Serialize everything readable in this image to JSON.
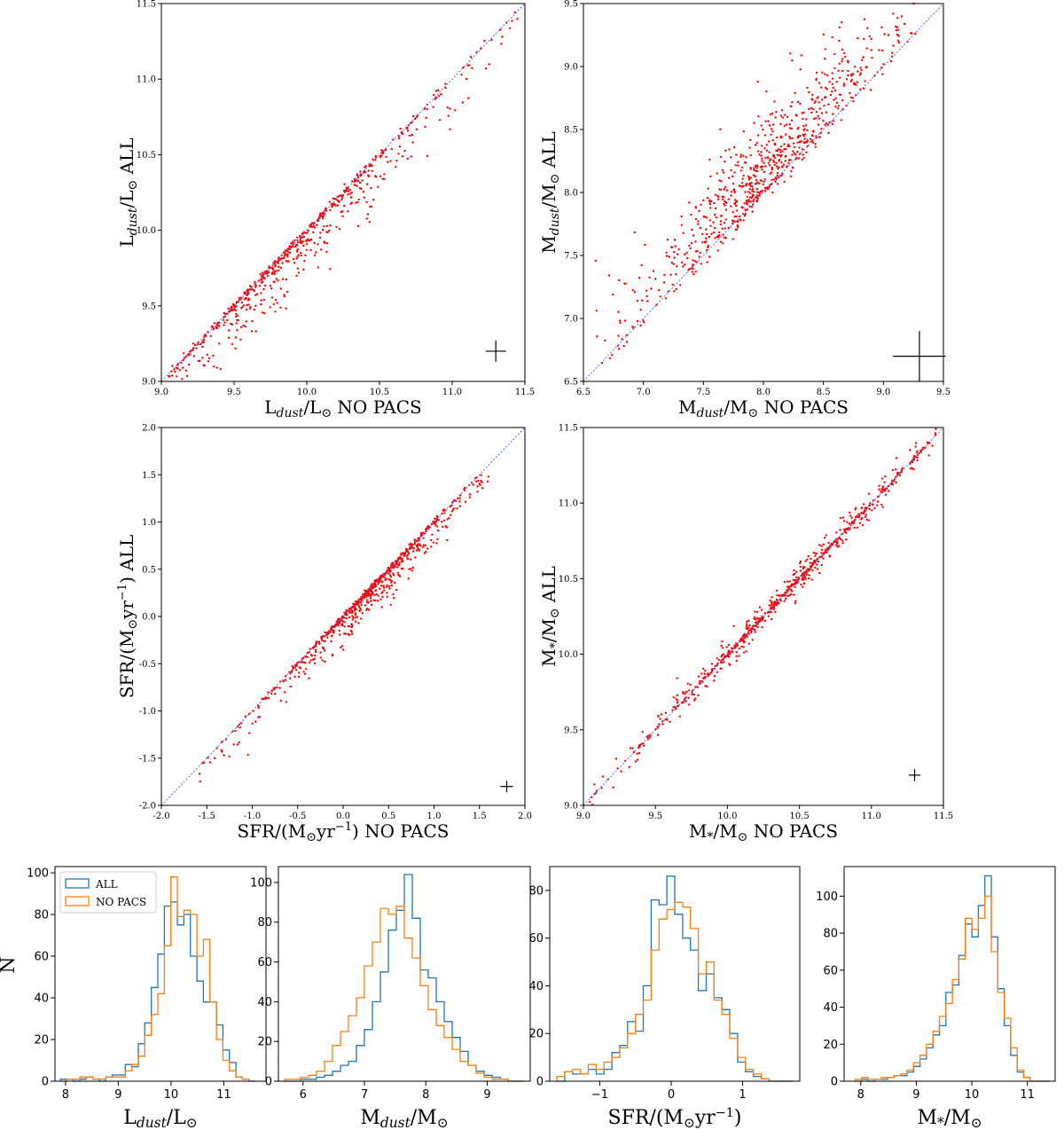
{
  "figure": {
    "colors": {
      "scatter": "#ff0000",
      "identity": "#4a6cf0",
      "error": "#000000",
      "all": "#1f77b4",
      "nopacs": "#ff7f0e"
    }
  },
  "chart_data": [
    {
      "id": "scatter_ldust",
      "type": "scatter",
      "xlabel": "L_dust/L_sun NO PACS",
      "ylabel": "L_dust/L_sun ALL",
      "xlabel_parts": [
        "L",
        "dust",
        "/L",
        "⊙",
        " NO PACS"
      ],
      "ylabel_parts": [
        "L",
        "dust",
        "/L",
        "⊙",
        " ALL"
      ],
      "xlim": [
        9.0,
        11.5
      ],
      "ylim": [
        9.0,
        11.5
      ],
      "xticks": [
        "9.0",
        "9.5",
        "10.0",
        "10.5",
        "11.0",
        "11.5"
      ],
      "yticks": [
        "9.0",
        "9.5",
        "10.0",
        "10.5",
        "11.0",
        "11.5"
      ],
      "identity_line": true,
      "error_bar": {
        "x": 11.3,
        "y": 9.2,
        "dx": 0.07,
        "dy": 0.035
      },
      "spread": {
        "n": 650,
        "x_range": [
          9.05,
          11.45
        ],
        "mu": 9.85,
        "sigma": 0.45,
        "below_only": true,
        "scatter": 0.14
      }
    },
    {
      "id": "scatter_mdust",
      "type": "scatter",
      "xlabel": "M_dust/M_sun NO PACS",
      "ylabel": "M_dust/M_sun ALL",
      "xlabel_parts": [
        "M",
        "dust",
        "/M",
        "⊙",
        " NO PACS"
      ],
      "ylabel_parts": [
        "M",
        "dust",
        "/M",
        "⊙",
        " ALL"
      ],
      "xlim": [
        6.5,
        9.5
      ],
      "ylim": [
        6.5,
        9.5
      ],
      "xticks": [
        "6.5",
        "7.0",
        "7.5",
        "8.0",
        "8.5",
        "9.0",
        "9.5"
      ],
      "yticks": [
        "6.5",
        "7.0",
        "7.5",
        "8.0",
        "8.5",
        "9.0",
        "9.5"
      ],
      "identity_line": true,
      "error_bar": {
        "x": 9.3,
        "y": 6.7,
        "dx": 0.22,
        "dy": 0.1
      },
      "spread": {
        "n": 750,
        "x_range": [
          6.6,
          9.3
        ],
        "mu": 8.0,
        "sigma": 0.45,
        "below_only": false,
        "scatter": 0.22
      }
    },
    {
      "id": "scatter_sfr",
      "type": "scatter",
      "xlabel": "SFR/(M_sun yr^-1) NO PACS",
      "ylabel": "SFR/(M_sun yr^-1) ALL",
      "xlabel_parts": [
        "SFR/(M",
        "⊙",
        "yr",
        "−1",
        ") NO PACS"
      ],
      "ylabel_parts": [
        "SFR/(M",
        "⊙",
        "yr",
        "−1",
        ") ALL"
      ],
      "xlim": [
        -2.0,
        2.0
      ],
      "ylim": [
        -2.0,
        2.0
      ],
      "xticks": [
        "-2.0",
        "-1.5",
        "-1.0",
        "-0.5",
        "0.0",
        "0.5",
        "1.0",
        "1.5",
        "2.0"
      ],
      "yticks": [
        "-2.0",
        "-1.5",
        "-1.0",
        "-0.5",
        "0.0",
        "0.5",
        "1.0",
        "1.5",
        "2.0"
      ],
      "identity_line": true,
      "error_bar": {
        "x": 1.8,
        "y": -1.8,
        "dx": 0.07,
        "dy": 0.03
      },
      "spread": {
        "n": 700,
        "x_range": [
          -1.6,
          1.6
        ],
        "mu": 0.35,
        "sigma": 0.5,
        "below_only": true,
        "scatter": 0.13
      }
    },
    {
      "id": "scatter_mstar",
      "type": "scatter",
      "xlabel": "M_*/M_sun NO PACS",
      "ylabel": "M_*/M_sun ALL",
      "xlabel_parts": [
        "M",
        "*",
        "/M",
        "⊙",
        " NO PACS"
      ],
      "ylabel_parts": [
        "M",
        "*",
        "/M",
        "⊙",
        " ALL"
      ],
      "xlim": [
        9.0,
        11.5
      ],
      "ylim": [
        9.0,
        11.5
      ],
      "xticks": [
        "9.0",
        "9.5",
        "10.0",
        "10.5",
        "11.0",
        "11.5"
      ],
      "yticks": [
        "9.0",
        "9.5",
        "10.0",
        "10.5",
        "11.0",
        "11.5"
      ],
      "identity_line": true,
      "error_bar": {
        "x": 11.3,
        "y": 9.2,
        "dx": 0.04,
        "dy": 0.02
      },
      "spread": {
        "n": 700,
        "x_range": [
          9.02,
          11.45
        ],
        "mu": 10.4,
        "sigma": 0.5,
        "below_only": false,
        "scatter": 0.05
      }
    },
    {
      "id": "hist_ldust",
      "type": "histogram",
      "xlabel": "L_dust/L_sun",
      "xlabel_parts": [
        "L",
        "dust",
        "/L",
        "⊙",
        ""
      ],
      "ylabel": "N",
      "xlim": [
        7.8,
        11.8
      ],
      "ylim": [
        0,
        103
      ],
      "xticks": [
        8,
        9,
        10,
        11
      ],
      "yticks": [
        0,
        20,
        40,
        60,
        80,
        100
      ],
      "legend": [
        "ALL",
        "NO PACS"
      ],
      "series": [
        {
          "name": "ALL",
          "edges": [
            7.9,
            11.6
          ],
          "counts": [
            1,
            1,
            0,
            1,
            2,
            1,
            0,
            2,
            3,
            3,
            8,
            7,
            18,
            28,
            45,
            61,
            84,
            86,
            75,
            80,
            60,
            48,
            38,
            38,
            27,
            15,
            9,
            2,
            1,
            0
          ]
        },
        {
          "name": "NO PACS",
          "edges": [
            7.9,
            11.6
          ],
          "counts": [
            0,
            1,
            1,
            2,
            2,
            1,
            1,
            2,
            2,
            2,
            5,
            8,
            12,
            22,
            32,
            42,
            65,
            98,
            79,
            82,
            80,
            60,
            68,
            38,
            20,
            10,
            5,
            2,
            1,
            0
          ]
        }
      ]
    },
    {
      "id": "hist_mdust",
      "type": "histogram",
      "xlabel": "M_dust/M_sun",
      "xlabel_parts": [
        "M",
        "dust",
        "/M",
        "⊙",
        ""
      ],
      "xlim": [
        5.6,
        9.7
      ],
      "ylim": [
        0,
        108
      ],
      "xticks": [
        6,
        7,
        8,
        9
      ],
      "yticks": [
        0,
        20,
        40,
        60,
        80,
        100
      ],
      "series": [
        {
          "name": "ALL",
          "edges": [
            5.7,
            9.6
          ],
          "counts": [
            0,
            0,
            1,
            1,
            2,
            3,
            5,
            8,
            10,
            18,
            26,
            40,
            55,
            76,
            86,
            104,
            82,
            56,
            52,
            40,
            30,
            22,
            15,
            8,
            5,
            3,
            2,
            1,
            0,
            0
          ]
        },
        {
          "name": "NO PACS",
          "edges": [
            5.7,
            9.6
          ],
          "counts": [
            1,
            1,
            2,
            3,
            5,
            10,
            18,
            25,
            33,
            42,
            58,
            70,
            87,
            84,
            88,
            72,
            62,
            48,
            36,
            28,
            22,
            16,
            10,
            8,
            4,
            2,
            1,
            1,
            0,
            0
          ]
        }
      ]
    },
    {
      "id": "hist_sfr",
      "type": "histogram",
      "xlabel": "SFR/(M_sun yr^-1)",
      "xlabel_parts": [
        "SFR/(M",
        "⊙",
        "yr",
        "−1",
        ")"
      ],
      "xlim": [
        -1.7,
        1.8
      ],
      "ylim": [
        0,
        90
      ],
      "xticks": [
        -1,
        0,
        1
      ],
      "yticks": [
        0,
        20,
        40,
        60,
        80
      ],
      "series": [
        {
          "name": "ALL",
          "edges": [
            -1.6,
            1.7
          ],
          "counts": [
            0,
            4,
            3,
            3,
            5,
            3,
            5,
            12,
            15,
            25,
            21,
            40,
            76,
            74,
            86,
            70,
            60,
            55,
            38,
            45,
            35,
            30,
            20,
            8,
            4,
            2,
            1,
            0,
            0,
            0
          ]
        },
        {
          "name": "NO PACS",
          "edges": [
            -1.6,
            1.7
          ],
          "counts": [
            2,
            4,
            5,
            3,
            7,
            5,
            8,
            10,
            14,
            20,
            28,
            34,
            55,
            68,
            72,
            75,
            73,
            64,
            45,
            50,
            34,
            28,
            18,
            10,
            5,
            3,
            1,
            0,
            0,
            0
          ]
        }
      ]
    },
    {
      "id": "hist_mstar",
      "type": "histogram",
      "xlabel": "M_*/M_sun",
      "xlabel_parts": [
        "M",
        "*",
        "/M",
        "⊙",
        ""
      ],
      "xlim": [
        7.7,
        11.5
      ],
      "ylim": [
        0,
        116
      ],
      "xticks": [
        8,
        9,
        10,
        11
      ],
      "yticks": [
        0,
        20,
        40,
        60,
        80,
        100
      ],
      "series": [
        {
          "name": "ALL",
          "edges": [
            7.9,
            11.4
          ],
          "counts": [
            0,
            1,
            0,
            1,
            1,
            2,
            3,
            3,
            5,
            8,
            12,
            18,
            25,
            30,
            48,
            52,
            68,
            85,
            78,
            95,
            111,
            78,
            50,
            30,
            14,
            5,
            2,
            0,
            0,
            0
          ]
        },
        {
          "name": "NO PACS",
          "edges": [
            7.9,
            11.4
          ],
          "counts": [
            1,
            2,
            1,
            1,
            2,
            2,
            3,
            4,
            6,
            10,
            14,
            20,
            27,
            35,
            42,
            55,
            66,
            88,
            82,
            88,
            100,
            70,
            48,
            34,
            18,
            6,
            2,
            0,
            0,
            0
          ]
        }
      ]
    }
  ]
}
